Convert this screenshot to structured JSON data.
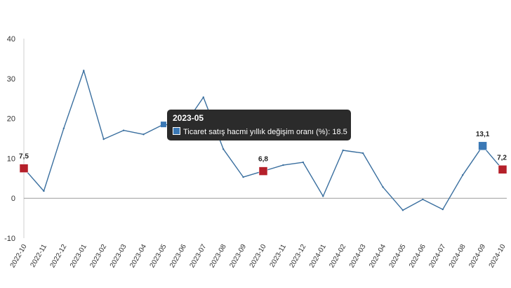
{
  "chart_data": {
    "type": "line",
    "categories": [
      "2022-10",
      "2022-11",
      "2022-12",
      "2023-01",
      "2023-02",
      "2023-03",
      "2023-04",
      "2023-05",
      "2023-06",
      "2023-07",
      "2023-08",
      "2023-09",
      "2023-10",
      "2023-11",
      "2023-12",
      "2024-01",
      "2024-02",
      "2024-03",
      "2024-04",
      "2024-05",
      "2024-06",
      "2024-07",
      "2024-08",
      "2024-09",
      "2024-10"
    ],
    "series": [
      {
        "name": "Ticaret satış hacmi yıllık değişim oranı (%)",
        "values": [
          7.5,
          1.8,
          17.5,
          32.0,
          14.8,
          17.0,
          16.0,
          18.5,
          18.0,
          25.3,
          12.3,
          5.3,
          6.8,
          8.3,
          9.0,
          0.5,
          12.0,
          11.3,
          2.8,
          -3.0,
          -0.3,
          -2.8,
          5.8,
          13.1,
          7.2
        ],
        "color": "#3a6f9f"
      }
    ],
    "ylim": [
      -10,
      40
    ],
    "yticks": [
      -10,
      0,
      10,
      20,
      30,
      40
    ],
    "grid": false,
    "zero_line": true,
    "highlighted_points": [
      {
        "index": 0,
        "label": "7,5",
        "color": "#b5202a"
      },
      {
        "index": 12,
        "label": "6,8",
        "color": "#b5202a"
      },
      {
        "index": 23,
        "label": "13,1",
        "color": "#3a78b5"
      },
      {
        "index": 24,
        "label": "7,2",
        "color": "#b5202a"
      }
    ],
    "hover_point": {
      "index": 7,
      "color": "#3a78b5"
    }
  },
  "tooltip": {
    "title": "2023-05",
    "series_label": "Ticaret satış hacmi yıllık değişim oranı (%):",
    "value": "18.5",
    "swatch_color": "#3a78b5"
  }
}
